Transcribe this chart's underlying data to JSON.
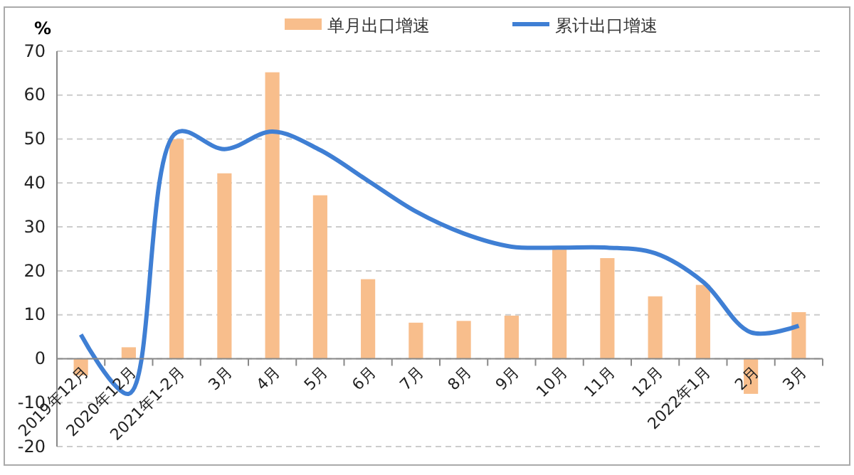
{
  "chart_data": {
    "type": "bar",
    "ylabel": "%",
    "categories": [
      "2019年12月",
      "2020年12月",
      "2021年1-2月",
      "3月",
      "4月",
      "5月",
      "6月",
      "7月",
      "8月",
      "9月",
      "10月",
      "11月",
      "12月",
      "2022年1月",
      "2月",
      "3月"
    ],
    "series": [
      {
        "name": "单月出口增速",
        "color": "#f8be8c",
        "values": [
          -3.8,
          2.6,
          50,
          42.2,
          65.2,
          37.2,
          18.1,
          8.2,
          8.6,
          9.8,
          24.9,
          22.9,
          14.2,
          16.8,
          -8,
          10.6
        ]
      },
      {
        "name": "累计出口增速",
        "type": "line",
        "color": "#3f7fd4",
        "values": [
          5.5,
          -8,
          51.5,
          47.7,
          51.7,
          47.5,
          40.5,
          33.5,
          28.5,
          25.5,
          25.3,
          25.3,
          24,
          17.5,
          6,
          7.5
        ]
      }
    ],
    "ylim": [
      -20,
      70
    ],
    "yticks": [
      -20,
      -10,
      0,
      10,
      20,
      30,
      40,
      50,
      60,
      70
    ],
    "grid": "y",
    "legend": "top",
    "line_style": "solid",
    "marker": "none"
  }
}
